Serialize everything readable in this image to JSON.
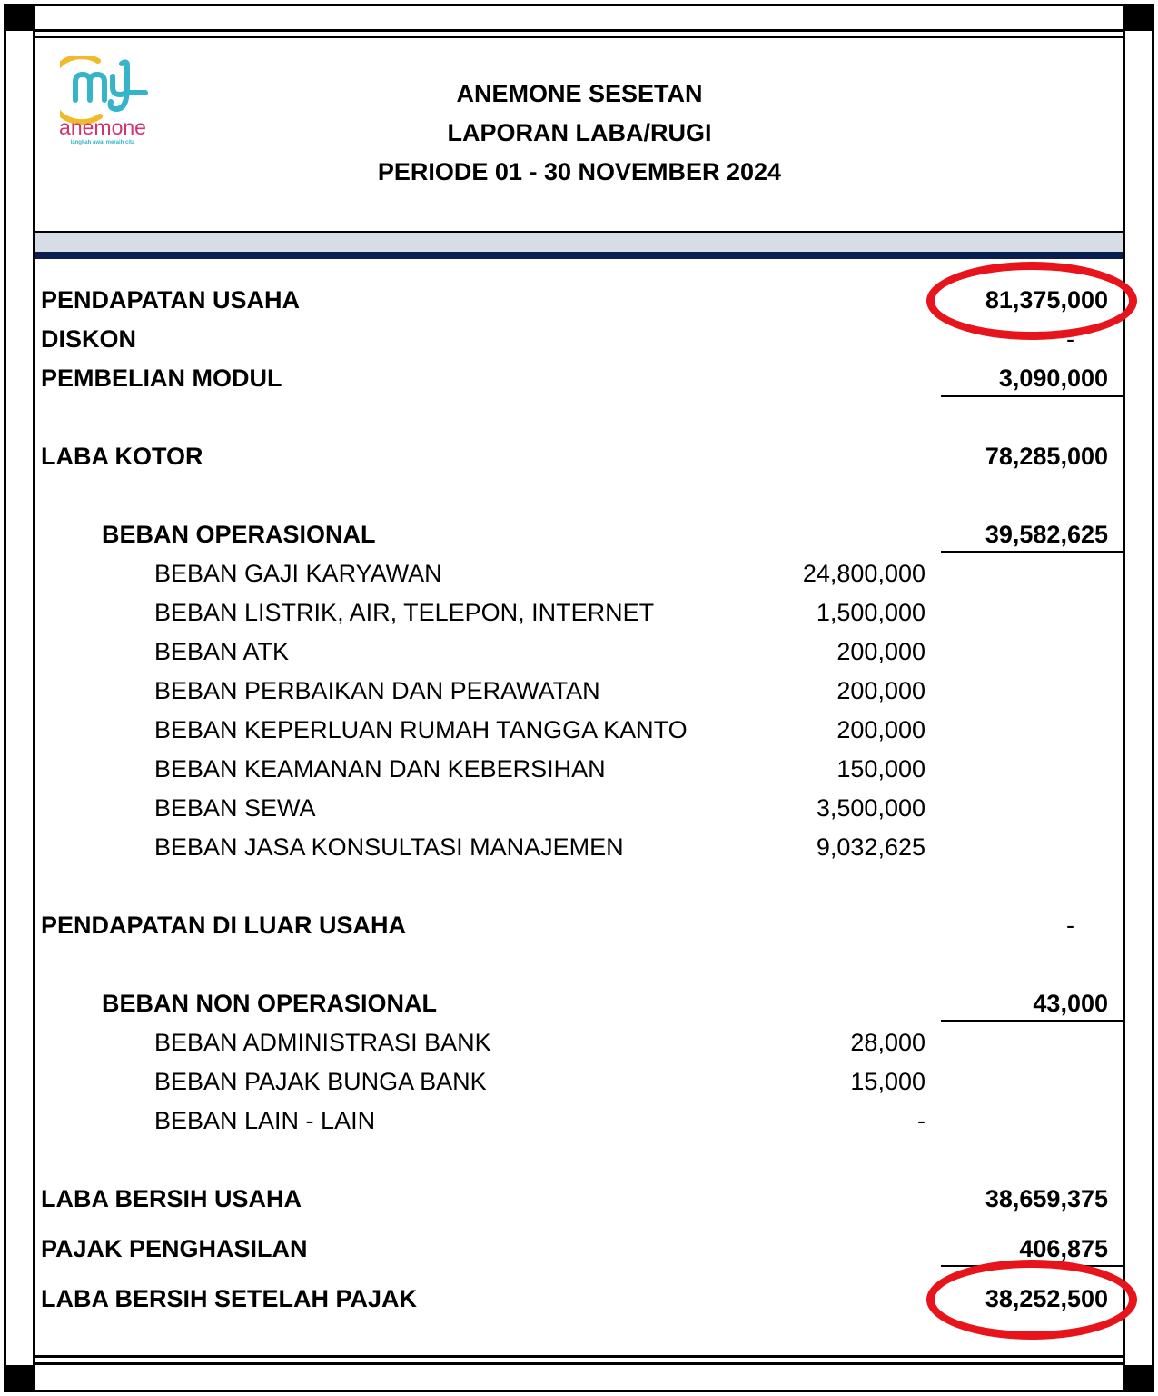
{
  "logo": {
    "text": "my anemone",
    "tagline": "langkah awal meraih cita"
  },
  "header": {
    "company": "ANEMONE SESETAN",
    "title": "LAPORAN LABA/RUGI",
    "period": "PERIODE 01 - 30 NOVEMBER 2024"
  },
  "rows": [
    {
      "label": "PENDAPATAN USAHA",
      "total": "81,375,000"
    },
    {
      "label": "DISKON",
      "total": "-"
    },
    {
      "label": "PEMBELIAN MODUL",
      "total": "3,090,000"
    },
    {
      "label": "LABA KOTOR",
      "total": "78,285,000"
    },
    {
      "label": "BEBAN OPERASIONAL",
      "total": "39,582,625"
    },
    {
      "label": "BEBAN GAJI KARYAWAN",
      "amount": "24,800,000"
    },
    {
      "label": "BEBAN LISTRIK, AIR, TELEPON, INTERNET",
      "amount": "1,500,000"
    },
    {
      "label": "BEBAN ATK",
      "amount": "200,000"
    },
    {
      "label": "BEBAN PERBAIKAN DAN PERAWATAN",
      "amount": "200,000"
    },
    {
      "label": "BEBAN KEPERLUAN RUMAH TANGGA KANTO",
      "amount": "200,000"
    },
    {
      "label": "BEBAN KEAMANAN DAN KEBERSIHAN",
      "amount": "150,000"
    },
    {
      "label": "BEBAN SEWA",
      "amount": "3,500,000"
    },
    {
      "label": "BEBAN JASA KONSULTASI MANAJEMEN",
      "amount": "9,032,625"
    },
    {
      "label": "PENDAPATAN DI LUAR USAHA",
      "total": "-"
    },
    {
      "label": "BEBAN NON OPERASIONAL",
      "total": "43,000"
    },
    {
      "label": "BEBAN ADMINISTRASI BANK",
      "amount": "28,000"
    },
    {
      "label": "BEBAN PAJAK BUNGA BANK",
      "amount": "15,000"
    },
    {
      "label": "BEBAN LAIN - LAIN",
      "amount": "-"
    },
    {
      "label": "LABA BERSIH USAHA",
      "total": "38,659,375"
    },
    {
      "label": "PAJAK PENGHASILAN",
      "total": "406,875"
    },
    {
      "label": "LABA BERSIH SETELAH PAJAK",
      "total": "38,252,500"
    }
  ],
  "colors": {
    "highlight": "#e8141b",
    "band_light": "#d6dde4",
    "band_dark": "#0b1f4f"
  }
}
